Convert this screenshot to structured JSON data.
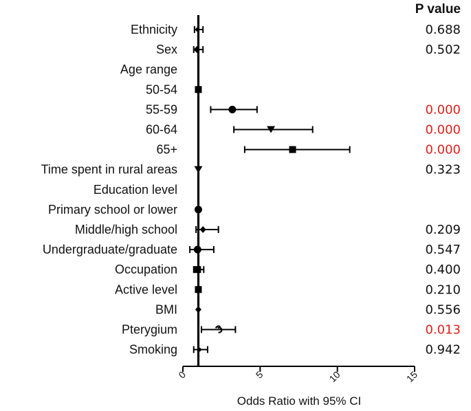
{
  "chart_data": {
    "type": "forest",
    "pvalue_header": "P value",
    "xlabel": "Odds Ratio with 95% CI",
    "xlim": [
      0,
      15
    ],
    "xticks": [
      "0",
      "5",
      "10",
      "15"
    ],
    "reference_line": 1,
    "significant_color": "#e0201b",
    "default_color": "#111111",
    "rows": [
      {
        "label": "Ethnicity",
        "or": 0.95,
        "lo": 0.75,
        "hi": 1.3,
        "marker": "circle-small",
        "p": "0.688",
        "sig": false
      },
      {
        "label": "Sex",
        "or": 0.9,
        "lo": 0.7,
        "hi": 1.3,
        "marker": "diamond",
        "p": "0.502",
        "sig": false
      },
      {
        "label": "Age range",
        "or": null,
        "lo": null,
        "hi": null,
        "marker": "none",
        "p": "",
        "sig": false
      },
      {
        "label": "50-54",
        "or": 1.0,
        "lo": null,
        "hi": null,
        "marker": "square",
        "p": "",
        "sig": false
      },
      {
        "label": "55-59",
        "or": 3.2,
        "lo": 1.8,
        "hi": 4.8,
        "marker": "circle",
        "p": "0.000",
        "sig": true
      },
      {
        "label": "60-64",
        "or": 5.7,
        "lo": 3.3,
        "hi": 8.4,
        "marker": "triangle-down",
        "p": "0.000",
        "sig": true
      },
      {
        "label": "65+",
        "or": 7.1,
        "lo": 4.0,
        "hi": 10.8,
        "marker": "square",
        "p": "0.000",
        "sig": true
      },
      {
        "label": "Time spent in rural areas",
        "or": 1.0,
        "lo": null,
        "hi": null,
        "marker": "triangle-down",
        "p": "0.323",
        "sig": false
      },
      {
        "label": "Education level",
        "or": null,
        "lo": null,
        "hi": null,
        "marker": "none",
        "p": "",
        "sig": false
      },
      {
        "label": "Primary school or lower",
        "or": 1.0,
        "lo": null,
        "hi": null,
        "marker": "circle",
        "p": "",
        "sig": false
      },
      {
        "label": "Middle/high school",
        "or": 1.3,
        "lo": 0.85,
        "hi": 2.3,
        "marker": "diamond",
        "p": "0.209",
        "sig": false
      },
      {
        "label": "Undergraduate/graduate",
        "or": 0.95,
        "lo": 0.45,
        "hi": 2.0,
        "marker": "circle",
        "p": "0.547",
        "sig": false
      },
      {
        "label": "Occupation",
        "or": 0.95,
        "lo": 0.7,
        "hi": 1.35,
        "marker": "square",
        "p": "0.400",
        "sig": false
      },
      {
        "label": "Active level",
        "or": 1.0,
        "lo": null,
        "hi": null,
        "marker": "square",
        "p": "0.210",
        "sig": false
      },
      {
        "label": "BMI",
        "or": 1.0,
        "lo": null,
        "hi": null,
        "marker": "diamond",
        "p": "0.556",
        "sig": false
      },
      {
        "label": "Pterygium",
        "or": 2.3,
        "lo": 1.2,
        "hi": 3.4,
        "marker": "open-glyph",
        "p": "0.013",
        "sig": true
      },
      {
        "label": "Smoking",
        "or": 1.05,
        "lo": 0.7,
        "hi": 1.6,
        "marker": "circle-small",
        "p": "0.942",
        "sig": false
      }
    ]
  }
}
